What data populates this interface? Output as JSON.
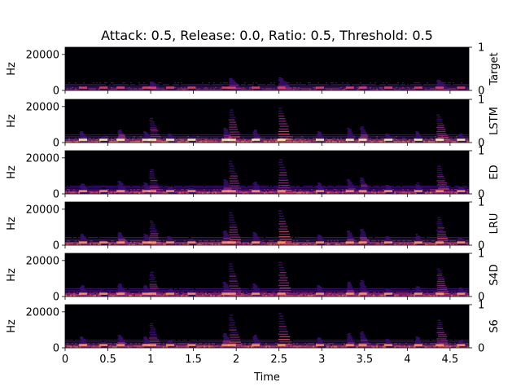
{
  "chart_data": {
    "type": "heatmap",
    "subtype": "spectrogram-stack",
    "title": "Attack: 0.5, Release: 0.0, Ratio: 0.5, Threshold: 0.5",
    "xlabel": "Time",
    "ylabel": "Hz",
    "xlim": [
      0,
      4.72
    ],
    "ylim": [
      0,
      24000
    ],
    "xticks": [
      {
        "v": 0,
        "label": "0"
      },
      {
        "v": 0.5,
        "label": "0.5"
      },
      {
        "v": 1,
        "label": "1"
      },
      {
        "v": 1.5,
        "label": "1.5"
      },
      {
        "v": 2,
        "label": "2"
      },
      {
        "v": 2.5,
        "label": "2.5"
      },
      {
        "v": 3,
        "label": "3"
      },
      {
        "v": 3.5,
        "label": "3.5"
      },
      {
        "v": 4,
        "label": "4"
      },
      {
        "v": 4.5,
        "label": "4.5"
      }
    ],
    "yticks": [
      {
        "v": 0,
        "label": "0"
      },
      {
        "v": 20000,
        "label": "20000"
      }
    ],
    "right_axis_ticks": [
      {
        "v": 0,
        "label": "0"
      },
      {
        "v": 1,
        "label": "1"
      }
    ],
    "colormap": [
      "#000004",
      "#3b0f70",
      "#8c2981",
      "#de4968",
      "#fe9f6d",
      "#fcfdbf"
    ],
    "panels": [
      {
        "name": "Target",
        "intensity": 0.55,
        "height_scale": 0.35
      },
      {
        "name": "LSTM",
        "intensity": 0.9,
        "height_scale": 1.0
      },
      {
        "name": "ED",
        "intensity": 0.8,
        "height_scale": 1.0
      },
      {
        "name": "LRU",
        "intensity": 0.85,
        "height_scale": 1.0
      },
      {
        "name": "S4D",
        "intensity": 0.85,
        "height_scale": 1.0
      },
      {
        "name": "S6",
        "intensity": 0.85,
        "height_scale": 1.0
      }
    ],
    "onsets": [
      {
        "t": 0.18,
        "peak_hz": 6000,
        "strength": 0.6
      },
      {
        "t": 0.42,
        "peak_hz": 4000,
        "strength": 0.4
      },
      {
        "t": 0.62,
        "peak_hz": 7000,
        "strength": 0.7
      },
      {
        "t": 0.92,
        "peak_hz": 6000,
        "strength": 0.6
      },
      {
        "t": 0.99,
        "peak_hz": 14000,
        "strength": 0.8
      },
      {
        "t": 1.2,
        "peak_hz": 5000,
        "strength": 0.5
      },
      {
        "t": 1.45,
        "peak_hz": 4000,
        "strength": 0.4
      },
      {
        "t": 1.85,
        "peak_hz": 8000,
        "strength": 0.7
      },
      {
        "t": 1.92,
        "peak_hz": 19000,
        "strength": 0.9
      },
      {
        "t": 2.2,
        "peak_hz": 7000,
        "strength": 0.6
      },
      {
        "t": 2.5,
        "peak_hz": 20000,
        "strength": 1.0
      },
      {
        "t": 2.95,
        "peak_hz": 6000,
        "strength": 0.5
      },
      {
        "t": 3.3,
        "peak_hz": 8000,
        "strength": 0.6
      },
      {
        "t": 3.45,
        "peak_hz": 9000,
        "strength": 0.7
      },
      {
        "t": 3.75,
        "peak_hz": 5000,
        "strength": 0.5
      },
      {
        "t": 4.1,
        "peak_hz": 6000,
        "strength": 0.5
      },
      {
        "t": 4.35,
        "peak_hz": 16000,
        "strength": 0.9
      },
      {
        "t": 4.6,
        "peak_hz": 5000,
        "strength": 0.5
      }
    ]
  }
}
